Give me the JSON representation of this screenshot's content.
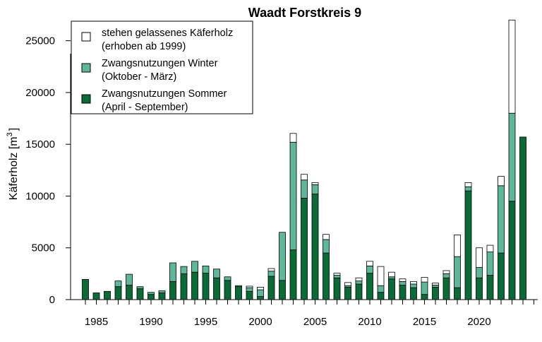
{
  "chart_data": {
    "type": "bar",
    "stacked": true,
    "title": "Waadt Forstkreis 9",
    "ylabel": "Käferholz [m",
    "ylabel_sup": "3",
    "ylabel_close": "]",
    "xlabel": "",
    "ylim": [
      0,
      27500
    ],
    "xlim": [
      1983,
      2025.5
    ],
    "yticks": [
      0,
      5000,
      10000,
      15000,
      20000,
      25000
    ],
    "xtick_labels": [
      1985,
      1990,
      1995,
      2000,
      2005,
      2010,
      2015,
      2020
    ],
    "grid": false,
    "legend_position": "top-left",
    "x": [
      1984,
      1985,
      1986,
      1987,
      1988,
      1989,
      1990,
      1991,
      1992,
      1993,
      1994,
      1995,
      1996,
      1997,
      1998,
      1999,
      2000,
      2001,
      2002,
      2003,
      2004,
      2005,
      2006,
      2007,
      2008,
      2009,
      2010,
      2011,
      2012,
      2013,
      2014,
      2015,
      2016,
      2017,
      2018,
      2019,
      2020,
      2021,
      2022,
      2023,
      2024
    ],
    "series": [
      {
        "name": "Zwangsnutzungen Sommer",
        "name_line2": "(April - September)",
        "color": "#0b6b37",
        "values": [
          1950,
          650,
          800,
          1250,
          1400,
          1050,
          500,
          650,
          1750,
          2500,
          2650,
          2550,
          2100,
          1850,
          1250,
          800,
          300,
          2250,
          1850,
          4800,
          9800,
          10200,
          4500,
          2100,
          1200,
          1500,
          2550,
          700,
          2000,
          1400,
          1150,
          500,
          1200,
          2100,
          1150,
          10500,
          2100,
          2350,
          4500,
          9500,
          15700
        ]
      },
      {
        "name": "Zwangsnutzungen Winter",
        "name_line2": "(Oktober - März)",
        "color": "#5fb79b",
        "values": [
          0,
          0,
          0,
          550,
          1050,
          200,
          200,
          200,
          1800,
          700,
          1050,
          700,
          850,
          350,
          100,
          350,
          650,
          500,
          4650,
          10400,
          1750,
          900,
          1300,
          250,
          150,
          300,
          700,
          650,
          200,
          350,
          350,
          1200,
          200,
          400,
          3000,
          400,
          1000,
          2250,
          6500,
          8500,
          0
        ]
      },
      {
        "name": "stehen gelassenes Käferholz",
        "name_line2": "(erhoben ab 1999)",
        "color": "#ffffff",
        "values": [
          0,
          0,
          0,
          0,
          0,
          0,
          0,
          0,
          0,
          0,
          0,
          0,
          0,
          0,
          0,
          150,
          250,
          250,
          0,
          850,
          550,
          200,
          500,
          200,
          300,
          300,
          450,
          1850,
          450,
          250,
          250,
          450,
          200,
          300,
          2100,
          400,
          1900,
          650,
          900,
          9000,
          0
        ]
      }
    ]
  }
}
